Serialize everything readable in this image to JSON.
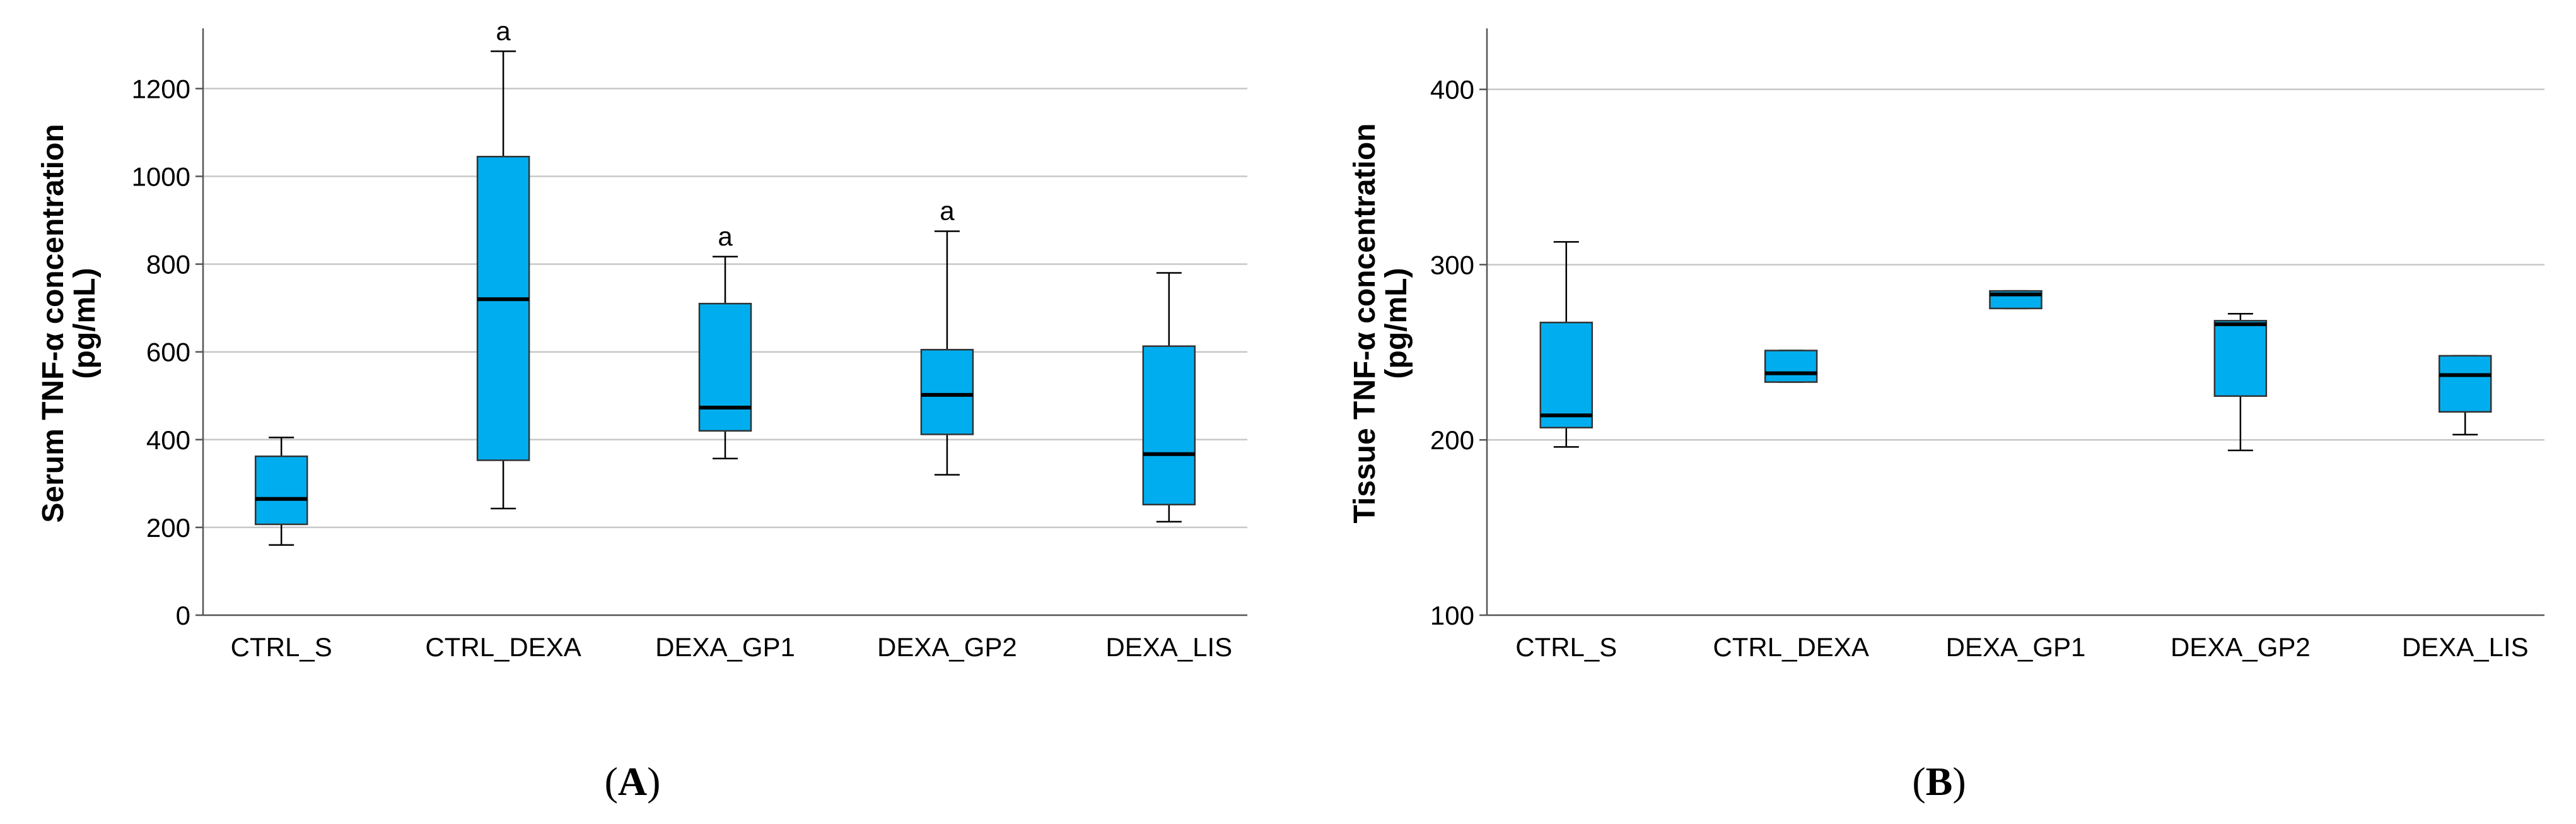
{
  "chart_data": [
    {
      "type": "box",
      "panel_label_open": "(",
      "panel_label_letter": "A",
      "panel_label_close": ")",
      "ylabel_line1": "Serum TNF-α concentration",
      "ylabel_line2": "(pg/mL)",
      "ylim": [
        0,
        1330
      ],
      "yticks": [
        0,
        200,
        400,
        600,
        800,
        1000,
        1200
      ],
      "categories": [
        "CTRL_S",
        "CTRL_DEXA",
        "DEXA_GP1",
        "DEXA_GP2",
        "DEXA_LIS"
      ],
      "boxes": [
        {
          "min": 160,
          "q1": 207,
          "median": 265,
          "q3": 362,
          "max": 405,
          "sig": ""
        },
        {
          "min": 243,
          "q1": 353,
          "median": 720,
          "q3": 1045,
          "max": 1285,
          "sig": "a"
        },
        {
          "min": 357,
          "q1": 420,
          "median": 473,
          "q3": 710,
          "max": 817,
          "sig": "a"
        },
        {
          "min": 320,
          "q1": 412,
          "median": 502,
          "q3": 605,
          "max": 875,
          "sig": "a"
        },
        {
          "min": 213,
          "q1": 252,
          "median": 367,
          "q3": 613,
          "max": 780,
          "sig": ""
        }
      ],
      "box_color": "#00AEEF"
    },
    {
      "type": "box",
      "panel_label_open": "(",
      "panel_label_letter": "B",
      "panel_label_close": ")",
      "ylabel_line1": "Tissue TNF-α concentration",
      "ylabel_line2": "(pg/mL)",
      "ylim": [
        100,
        433
      ],
      "yticks": [
        100,
        200,
        300,
        400
      ],
      "categories": [
        "CTRL_S",
        "CTRL_DEXA",
        "DEXA_GP1",
        "DEXA_GP2",
        "DEXA_LIS"
      ],
      "boxes": [
        {
          "min": 196,
          "q1": 207,
          "median": 214,
          "q3": 267,
          "max": 313,
          "sig": ""
        },
        {
          "min": 233,
          "q1": 233,
          "median": 238,
          "q3": 251,
          "max": 251,
          "sig": ""
        },
        {
          "min": 275,
          "q1": 275,
          "median": 283,
          "q3": 285,
          "max": 285,
          "sig": ""
        },
        {
          "min": 194,
          "q1": 225,
          "median": 266,
          "q3": 268,
          "max": 272,
          "sig": ""
        },
        {
          "min": 203,
          "q1": 216,
          "median": 237,
          "q3": 248,
          "max": 248,
          "sig": ""
        }
      ],
      "box_color": "#00AEEF"
    }
  ]
}
